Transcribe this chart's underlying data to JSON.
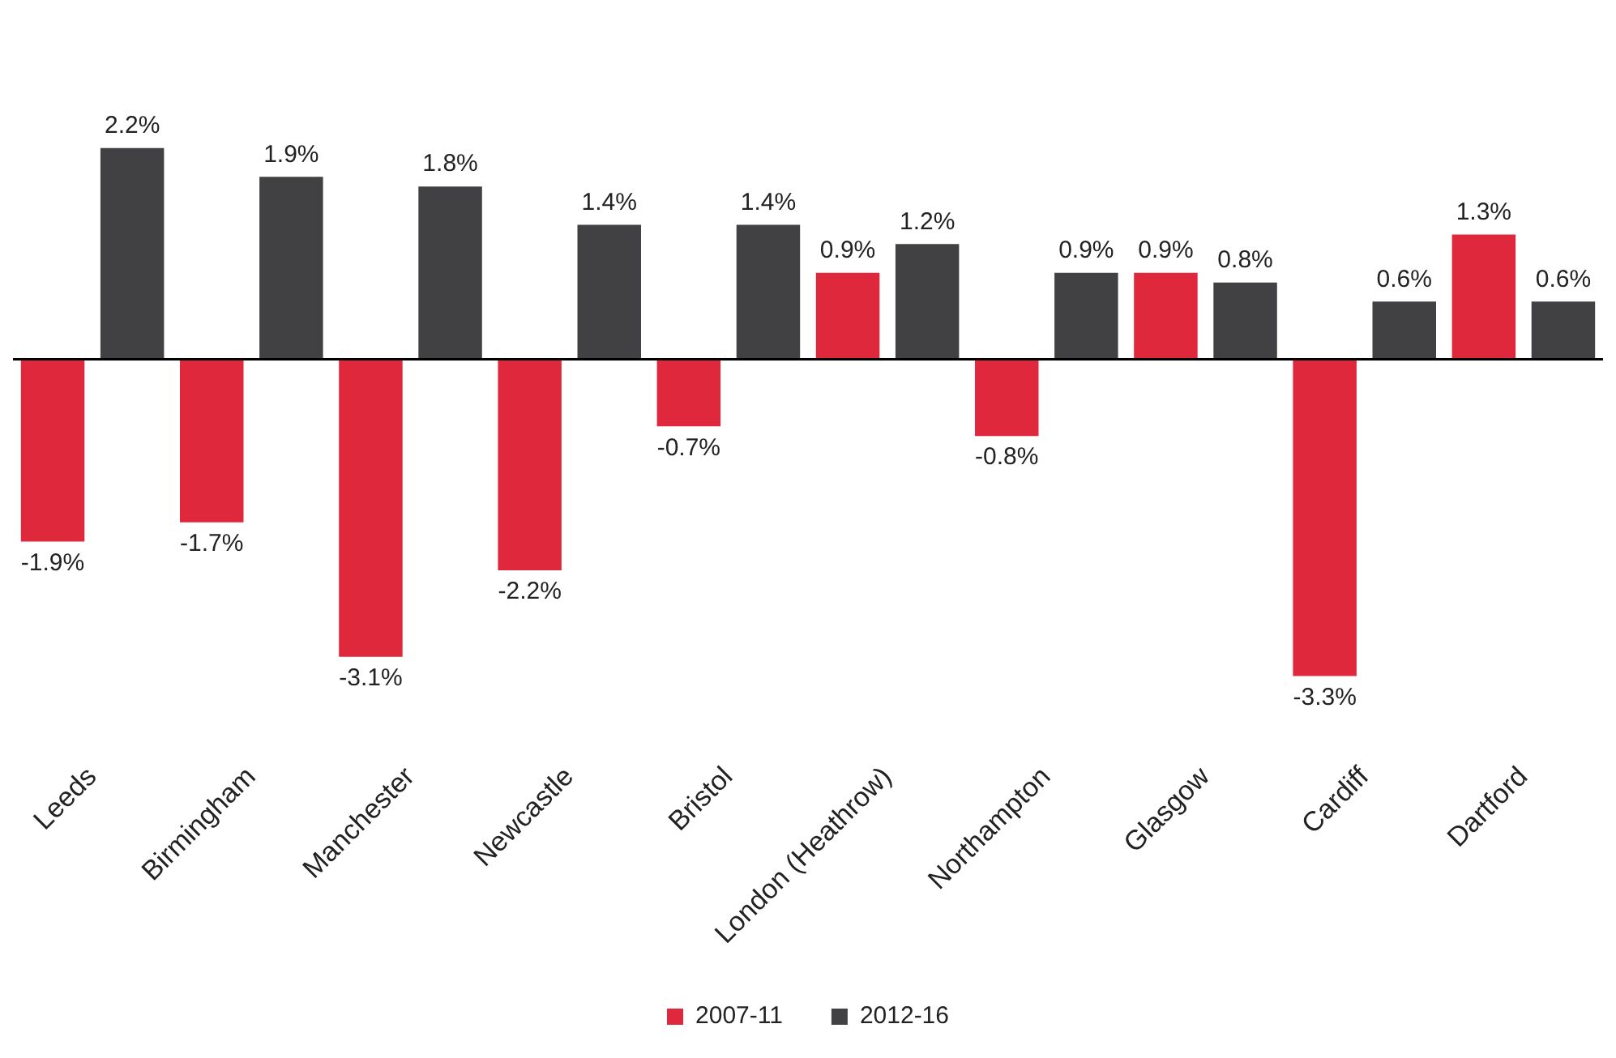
{
  "chart_data": {
    "type": "bar",
    "categories": [
      "Leeds",
      "Birmingham",
      "Manchester",
      "Newcastle",
      "Bristol",
      "London (Heathrow)",
      "Northampton",
      "Glasgow",
      "Cardiff",
      "Dartford"
    ],
    "series": [
      {
        "name": "2007-11",
        "color": "#e0283c",
        "values": [
          -1.9,
          -1.7,
          -3.1,
          -2.2,
          -0.7,
          0.9,
          -0.8,
          0.9,
          -3.3,
          1.3
        ],
        "value_labels": [
          "-1.9%",
          "-1.7%",
          "-3.1%",
          "-2.2%",
          "-0.7%",
          "0.9%",
          "-0.8%",
          "0.9%",
          "-3.3%",
          "1.3%"
        ]
      },
      {
        "name": "2012-16",
        "color": "#414042",
        "values": [
          2.2,
          1.9,
          1.8,
          1.4,
          1.4,
          1.2,
          0.9,
          0.8,
          0.6,
          0.6
        ],
        "value_labels": [
          "2.2%",
          "1.9%",
          "1.8%",
          "1.4%",
          "1.4%",
          "1.2%",
          "0.9%",
          "0.8%",
          "0.6%",
          "0.6%"
        ]
      }
    ],
    "tick_labels": "x",
    "grid": false,
    "legend": "bottom"
  }
}
